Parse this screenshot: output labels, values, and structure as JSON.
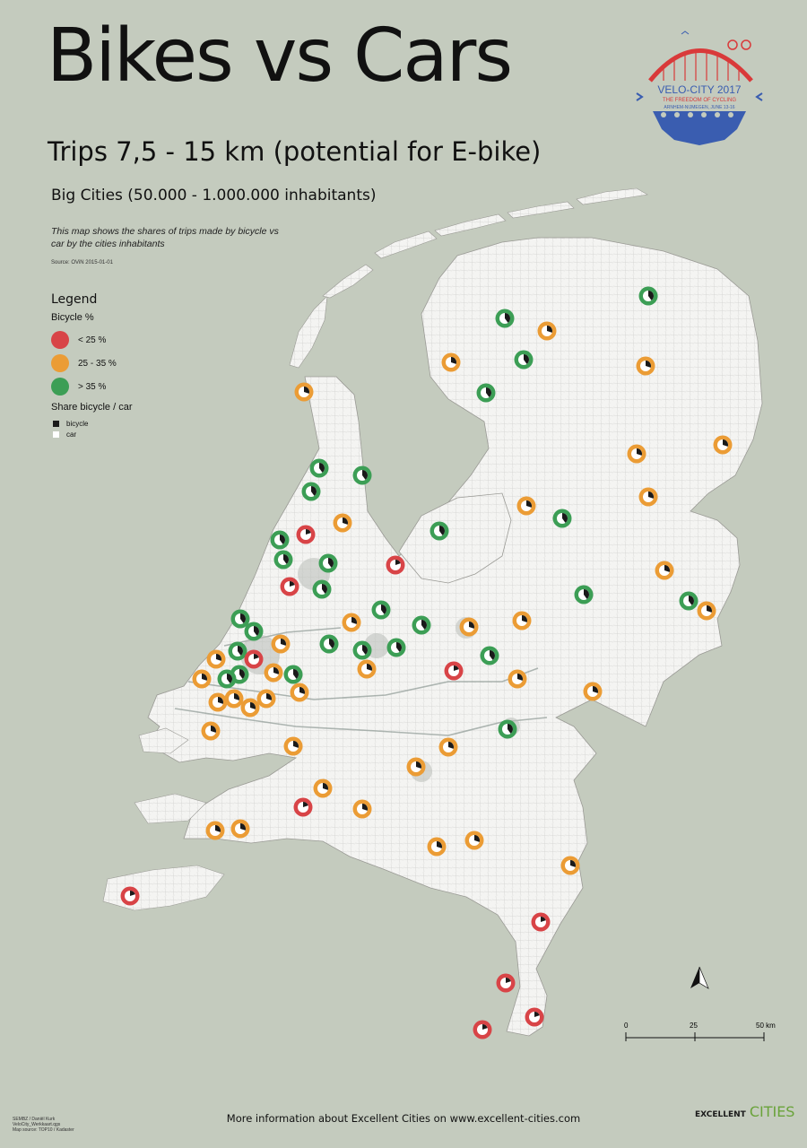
{
  "header": {
    "title": "Bikes vs Cars",
    "subtitle": "Trips 7,5 - 15 km (potential for E-bike)",
    "category": "Big Cities (50.000 - 1.000.000 inhabitants)",
    "description": "This map shows the shares of trips made by bicycle vs car by the cities inhabitants",
    "source": "Source: OViN 2015-01-01"
  },
  "legend": {
    "title": "Legend",
    "bicycle_heading": "Bicycle %",
    "classes": [
      {
        "label": "< 25 %",
        "color": "#d84447"
      },
      {
        "label": "25 - 35 %",
        "color": "#eb9c35"
      },
      {
        "label": "> 35 %",
        "color": "#3c9e55"
      }
    ],
    "share_heading": "Share bicycle / car",
    "share_items": [
      {
        "label": "bicycle",
        "color": "#1a1a1a"
      },
      {
        "label": "car",
        "color": "#ffffff"
      }
    ]
  },
  "scale": {
    "ticks": [
      "0",
      "25",
      "50 km"
    ]
  },
  "logo": {
    "name": "VELO-CITY 2017",
    "tagline": "THE FREEDOM OF CYCLING",
    "place_date": "ARNHEM-NIJMEGEN, JUNE 13-16"
  },
  "footer": {
    "text": "More information about Excellent Cities on www.excellent-cities.com"
  },
  "credits": [
    "SEMBZ / Daniël Kurk",
    "VeloCity_Werkkaart.qgs",
    "Map source: TOP10 / Kadaster"
  ],
  "ec_logo": {
    "word1": "EXCELLENT",
    "word2": "CITIES"
  }
}
